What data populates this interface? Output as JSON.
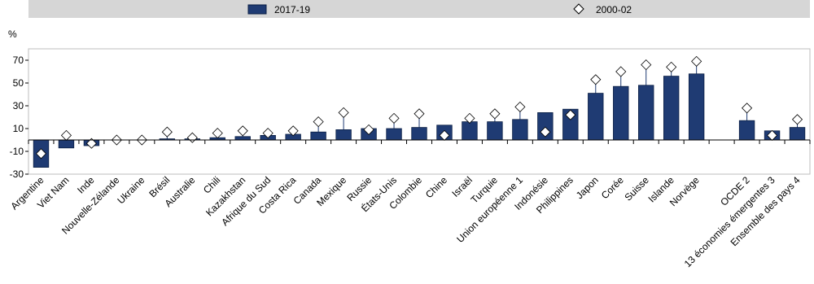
{
  "chart_data": {
    "type": "bar",
    "y_label": "%",
    "categories": [
      "Argentine",
      "Viet Nam",
      "Inde",
      "Nouvelle-Zélande",
      "Ukraine",
      "Brésil",
      "Australie",
      "Chili",
      "Kazakhstan",
      "Afrique du Sud",
      "Costa Rica",
      "Canada",
      "Mexique",
      "Russie",
      "États-Unis",
      "Colombie",
      "Chine",
      "Israël",
      "Turquie",
      "Union européenne 1",
      "Indonésie",
      "Philippines",
      "Japon",
      "Corée",
      "Suisse",
      "Islande",
      "Norvège",
      null,
      "OCDE 2",
      "13 économies émergentes 3",
      "Ensemble des pays 4"
    ],
    "series": [
      {
        "name": "2017-19",
        "color": "#1f3b73",
        "marker": "bar",
        "values": [
          -24,
          -7,
          -5,
          0,
          0,
          1,
          1,
          2,
          3,
          4,
          5,
          7,
          9,
          10,
          10,
          11,
          13,
          16,
          16,
          18,
          24,
          27,
          41,
          47,
          48,
          56,
          58,
          null,
          17,
          8,
          11
        ]
      },
      {
        "name": "2000-02",
        "color": "#ffffff",
        "marker": "diamond",
        "values": [
          -12,
          4,
          -3,
          0,
          0,
          7,
          2,
          6,
          8,
          6,
          8,
          16,
          24,
          9,
          19,
          23,
          4,
          19,
          23,
          29,
          7,
          22,
          53,
          60,
          66,
          64,
          69,
          null,
          28,
          4,
          18
        ]
      }
    ],
    "ylim": [
      -30,
      80
    ],
    "yticks": [
      -30,
      -10,
      10,
      30,
      50,
      70
    ],
    "grid": false,
    "legend": "top"
  }
}
